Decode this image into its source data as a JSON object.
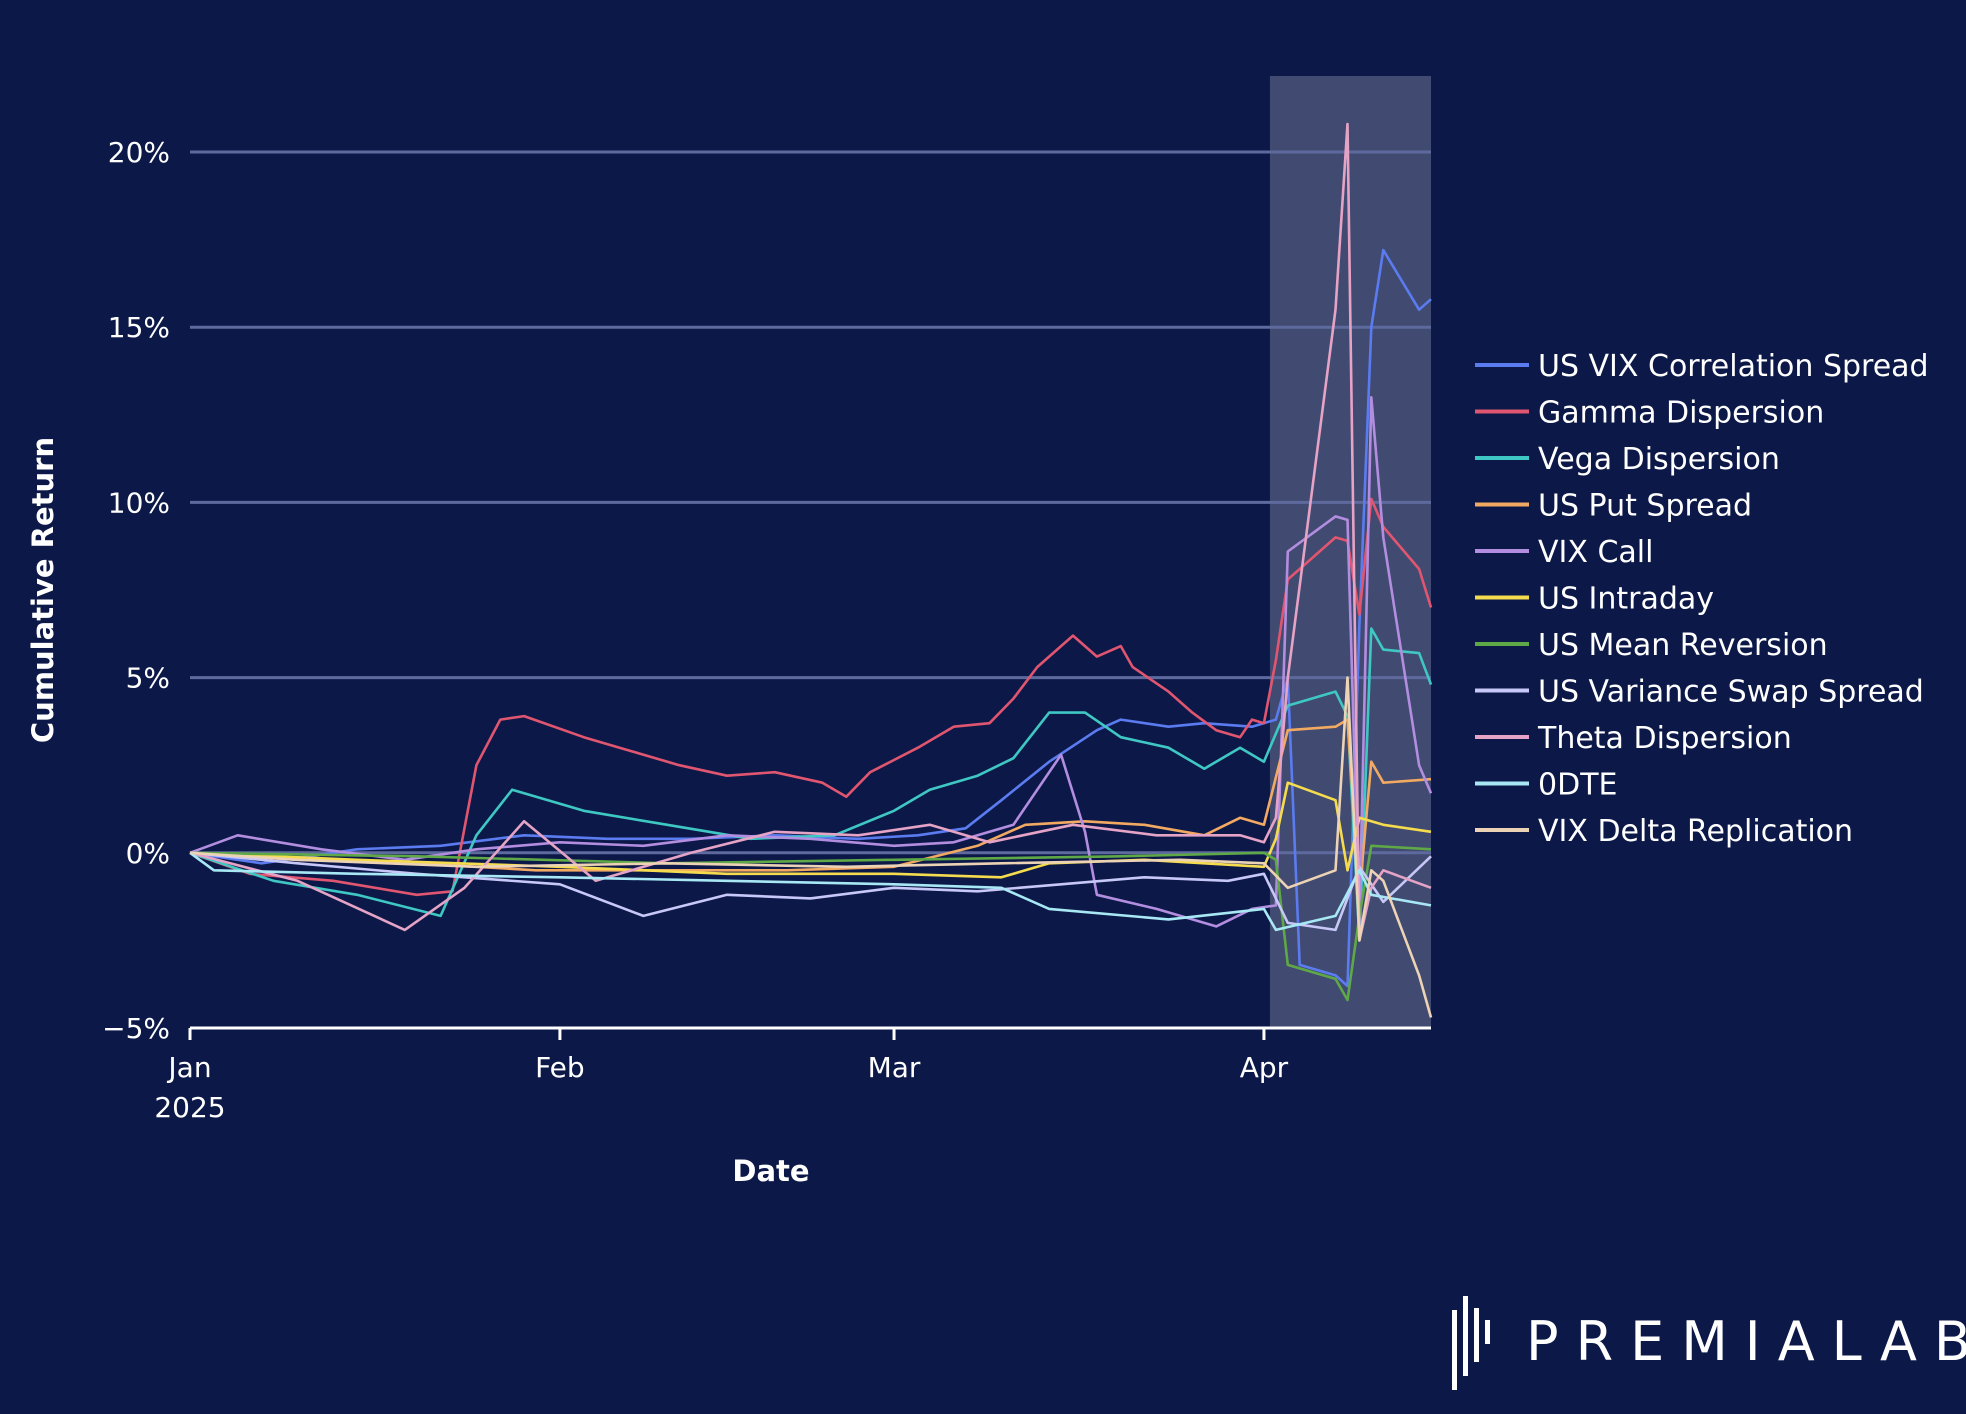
{
  "chart_data": {
    "type": "line",
    "title": "",
    "xlabel": "Date",
    "ylabel": "Cumulative Return",
    "x_ticks": [
      {
        "date": "2025-01-01",
        "label": "Jan",
        "sublabel": "2025"
      },
      {
        "date": "2025-02-01",
        "label": "Feb",
        "sublabel": ""
      },
      {
        "date": "2025-03-01",
        "label": "Mar",
        "sublabel": ""
      },
      {
        "date": "2025-04-01",
        "label": "Apr",
        "sublabel": ""
      }
    ],
    "y_ticks": [
      {
        "value": -5,
        "label": "−5%"
      },
      {
        "value": 0,
        "label": "0%"
      },
      {
        "value": 5,
        "label": "5%"
      },
      {
        "value": 10,
        "label": "10%"
      },
      {
        "value": 15,
        "label": "15%"
      },
      {
        "value": 20,
        "label": "20%"
      }
    ],
    "xlim": [
      "2025-01-01",
      "2025-04-15"
    ],
    "ylim": [
      -5,
      21
    ],
    "y_unit": "%",
    "grid": "horizontal",
    "legend_position": "right",
    "highlight_region": {
      "from": "2025-04-01",
      "to": "2025-04-15"
    },
    "series": [
      {
        "name": "US VIX Correlation Spread",
        "color": "#5b7cf0",
        "points": [
          [
            "2025-01-01",
            0
          ],
          [
            "2025-01-07",
            -0.3
          ],
          [
            "2025-01-15",
            0.1
          ],
          [
            "2025-01-22",
            0.2
          ],
          [
            "2025-01-29",
            0.5
          ],
          [
            "2025-02-05",
            0.4
          ],
          [
            "2025-02-12",
            0.4
          ],
          [
            "2025-02-19",
            0.5
          ],
          [
            "2025-02-26",
            0.4
          ],
          [
            "2025-03-03",
            0.5
          ],
          [
            "2025-03-07",
            0.7
          ],
          [
            "2025-03-10",
            1.5
          ],
          [
            "2025-03-14",
            2.6
          ],
          [
            "2025-03-18",
            3.5
          ],
          [
            "2025-03-20",
            3.8
          ],
          [
            "2025-03-24",
            3.6
          ],
          [
            "2025-03-27",
            3.7
          ],
          [
            "2025-03-31",
            3.6
          ],
          [
            "2025-04-02",
            3.8
          ],
          [
            "2025-04-03",
            5.0
          ],
          [
            "2025-04-04",
            -3.2
          ],
          [
            "2025-04-07",
            -3.5
          ],
          [
            "2025-04-08",
            -3.8
          ],
          [
            "2025-04-09",
            6.5
          ],
          [
            "2025-04-10",
            15.0
          ],
          [
            "2025-04-11",
            17.2
          ],
          [
            "2025-04-14",
            15.5
          ],
          [
            "2025-04-15",
            15.8
          ]
        ]
      },
      {
        "name": "Gamma Dispersion",
        "color": "#e05670",
        "points": [
          [
            "2025-01-01",
            0
          ],
          [
            "2025-01-06",
            -0.6
          ],
          [
            "2025-01-13",
            -0.8
          ],
          [
            "2025-01-20",
            -1.2
          ],
          [
            "2025-01-23",
            -1.1
          ],
          [
            "2025-01-25",
            2.5
          ],
          [
            "2025-01-27",
            3.8
          ],
          [
            "2025-01-29",
            3.9
          ],
          [
            "2025-02-03",
            3.3
          ],
          [
            "2025-02-07",
            2.9
          ],
          [
            "2025-02-11",
            2.5
          ],
          [
            "2025-02-15",
            2.2
          ],
          [
            "2025-02-19",
            2.3
          ],
          [
            "2025-02-23",
            2.0
          ],
          [
            "2025-02-25",
            1.6
          ],
          [
            "2025-02-27",
            2.3
          ],
          [
            "2025-03-03",
            3.0
          ],
          [
            "2025-03-06",
            3.6
          ],
          [
            "2025-03-09",
            3.7
          ],
          [
            "2025-03-11",
            4.4
          ],
          [
            "2025-03-13",
            5.3
          ],
          [
            "2025-03-16",
            6.2
          ],
          [
            "2025-03-18",
            5.6
          ],
          [
            "2025-03-20",
            5.9
          ],
          [
            "2025-03-21",
            5.3
          ],
          [
            "2025-03-24",
            4.6
          ],
          [
            "2025-03-26",
            4.0
          ],
          [
            "2025-03-28",
            3.5
          ],
          [
            "2025-03-30",
            3.3
          ],
          [
            "2025-03-31",
            3.8
          ],
          [
            "2025-04-01",
            3.7
          ],
          [
            "2025-04-02",
            5.5
          ],
          [
            "2025-04-03",
            7.8
          ],
          [
            "2025-04-07",
            9.0
          ],
          [
            "2025-04-08",
            8.9
          ],
          [
            "2025-04-09",
            6.8
          ],
          [
            "2025-04-10",
            10.1
          ],
          [
            "2025-04-11",
            9.3
          ],
          [
            "2025-04-14",
            8.1
          ],
          [
            "2025-04-15",
            7.0
          ]
        ]
      },
      {
        "name": "Vega Dispersion",
        "color": "#3fc8c3",
        "points": [
          [
            "2025-01-01",
            0
          ],
          [
            "2025-01-08",
            -0.8
          ],
          [
            "2025-01-15",
            -1.2
          ],
          [
            "2025-01-22",
            -1.8
          ],
          [
            "2025-01-25",
            0.5
          ],
          [
            "2025-01-28",
            1.8
          ],
          [
            "2025-02-03",
            1.2
          ],
          [
            "2025-02-10",
            0.8
          ],
          [
            "2025-02-17",
            0.4
          ],
          [
            "2025-02-24",
            0.5
          ],
          [
            "2025-03-01",
            1.2
          ],
          [
            "2025-03-04",
            1.8
          ],
          [
            "2025-03-08",
            2.2
          ],
          [
            "2025-03-11",
            2.7
          ],
          [
            "2025-03-14",
            4.0
          ],
          [
            "2025-03-17",
            4.0
          ],
          [
            "2025-03-20",
            3.3
          ],
          [
            "2025-03-24",
            3.0
          ],
          [
            "2025-03-27",
            2.4
          ],
          [
            "2025-03-30",
            3.0
          ],
          [
            "2025-04-01",
            2.6
          ],
          [
            "2025-04-03",
            4.2
          ],
          [
            "2025-04-07",
            4.6
          ],
          [
            "2025-04-08",
            3.9
          ],
          [
            "2025-04-09",
            -2.5
          ],
          [
            "2025-04-10",
            6.4
          ],
          [
            "2025-04-11",
            5.8
          ],
          [
            "2025-04-14",
            5.7
          ],
          [
            "2025-04-15",
            4.8
          ]
        ]
      },
      {
        "name": "US Put Spread",
        "color": "#f2a962",
        "points": [
          [
            "2025-01-01",
            0
          ],
          [
            "2025-01-10",
            -0.2
          ],
          [
            "2025-01-20",
            -0.3
          ],
          [
            "2025-01-30",
            -0.5
          ],
          [
            "2025-02-10",
            -0.5
          ],
          [
            "2025-02-20",
            -0.5
          ],
          [
            "2025-03-01",
            -0.4
          ],
          [
            "2025-03-08",
            0.2
          ],
          [
            "2025-03-12",
            0.8
          ],
          [
            "2025-03-17",
            0.9
          ],
          [
            "2025-03-22",
            0.8
          ],
          [
            "2025-03-27",
            0.5
          ],
          [
            "2025-03-30",
            1.0
          ],
          [
            "2025-04-01",
            0.8
          ],
          [
            "2025-04-03",
            3.5
          ],
          [
            "2025-04-07",
            3.6
          ],
          [
            "2025-04-08",
            3.8
          ],
          [
            "2025-04-09",
            -1.2
          ],
          [
            "2025-04-10",
            2.6
          ],
          [
            "2025-04-11",
            2.0
          ],
          [
            "2025-04-15",
            2.1
          ]
        ]
      },
      {
        "name": "VIX Call",
        "color": "#b38ee0",
        "points": [
          [
            "2025-01-01",
            0
          ],
          [
            "2025-01-05",
            0.5
          ],
          [
            "2025-01-12",
            0.1
          ],
          [
            "2025-01-19",
            -0.2
          ],
          [
            "2025-01-25",
            0.1
          ],
          [
            "2025-02-01",
            0.3
          ],
          [
            "2025-02-08",
            0.2
          ],
          [
            "2025-02-15",
            0.5
          ],
          [
            "2025-02-22",
            0.4
          ],
          [
            "2025-03-01",
            0.2
          ],
          [
            "2025-03-06",
            0.3
          ],
          [
            "2025-03-11",
            0.8
          ],
          [
            "2025-03-15",
            2.8
          ],
          [
            "2025-03-17",
            0.6
          ],
          [
            "2025-03-18",
            -1.2
          ],
          [
            "2025-03-23",
            -1.6
          ],
          [
            "2025-03-28",
            -2.1
          ],
          [
            "2025-03-31",
            -1.6
          ],
          [
            "2025-04-02",
            -1.5
          ],
          [
            "2025-04-03",
            8.6
          ],
          [
            "2025-04-07",
            9.6
          ],
          [
            "2025-04-08",
            9.5
          ],
          [
            "2025-04-09",
            -2.0
          ],
          [
            "2025-04-10",
            13.0
          ],
          [
            "2025-04-11",
            9.0
          ],
          [
            "2025-04-14",
            2.5
          ],
          [
            "2025-04-15",
            1.7
          ]
        ]
      },
      {
        "name": "US Intraday",
        "color": "#f5dc4f",
        "points": [
          [
            "2025-01-01",
            0
          ],
          [
            "2025-01-15",
            -0.2
          ],
          [
            "2025-02-01",
            -0.4
          ],
          [
            "2025-02-15",
            -0.6
          ],
          [
            "2025-03-01",
            -0.6
          ],
          [
            "2025-03-10",
            -0.7
          ],
          [
            "2025-03-14",
            -0.3
          ],
          [
            "2025-03-22",
            -0.2
          ],
          [
            "2025-04-01",
            -0.4
          ],
          [
            "2025-04-02",
            0.4
          ],
          [
            "2025-04-03",
            2.0
          ],
          [
            "2025-04-07",
            1.5
          ],
          [
            "2025-04-08",
            -0.5
          ],
          [
            "2025-04-09",
            1.0
          ],
          [
            "2025-04-11",
            0.8
          ],
          [
            "2025-04-15",
            0.6
          ]
        ]
      },
      {
        "name": "US Mean Reversion",
        "color": "#5fa847",
        "points": [
          [
            "2025-01-01",
            0
          ],
          [
            "2025-01-20",
            -0.1
          ],
          [
            "2025-02-10",
            -0.3
          ],
          [
            "2025-03-01",
            -0.2
          ],
          [
            "2025-03-20",
            -0.1
          ],
          [
            "2025-04-01",
            0
          ],
          [
            "2025-04-02",
            -0.2
          ],
          [
            "2025-04-03",
            -3.2
          ],
          [
            "2025-04-07",
            -3.6
          ],
          [
            "2025-04-08",
            -4.2
          ],
          [
            "2025-04-09",
            -1.8
          ],
          [
            "2025-04-10",
            0.2
          ],
          [
            "2025-04-15",
            0.1
          ]
        ]
      },
      {
        "name": "US Variance Swap Spread",
        "color": "#c8c8f8",
        "points": [
          [
            "2025-01-01",
            0
          ],
          [
            "2025-01-10",
            -0.3
          ],
          [
            "2025-01-20",
            -0.6
          ],
          [
            "2025-02-01",
            -0.9
          ],
          [
            "2025-02-08",
            -1.8
          ],
          [
            "2025-02-15",
            -1.2
          ],
          [
            "2025-02-22",
            -1.3
          ],
          [
            "2025-03-01",
            -1.0
          ],
          [
            "2025-03-08",
            -1.1
          ],
          [
            "2025-03-15",
            -0.9
          ],
          [
            "2025-03-22",
            -0.7
          ],
          [
            "2025-03-29",
            -0.8
          ],
          [
            "2025-04-01",
            -0.6
          ],
          [
            "2025-04-03",
            -2.0
          ],
          [
            "2025-04-07",
            -2.2
          ],
          [
            "2025-04-09",
            -0.4
          ],
          [
            "2025-04-11",
            -1.4
          ],
          [
            "2025-04-15",
            -0.1
          ]
        ]
      },
      {
        "name": "Theta Dispersion",
        "color": "#e5a3c6",
        "points": [
          [
            "2025-01-01",
            0
          ],
          [
            "2025-01-10",
            -0.8
          ],
          [
            "2025-01-19",
            -2.2
          ],
          [
            "2025-01-24",
            -1.0
          ],
          [
            "2025-01-29",
            0.9
          ],
          [
            "2025-02-04",
            -0.8
          ],
          [
            "2025-02-12",
            0
          ],
          [
            "2025-02-19",
            0.6
          ],
          [
            "2025-02-26",
            0.5
          ],
          [
            "2025-03-04",
            0.8
          ],
          [
            "2025-03-09",
            0.3
          ],
          [
            "2025-03-16",
            0.8
          ],
          [
            "2025-03-23",
            0.5
          ],
          [
            "2025-03-30",
            0.5
          ],
          [
            "2025-04-01",
            0.3
          ],
          [
            "2025-04-02",
            1.0
          ],
          [
            "2025-04-03",
            5.0
          ],
          [
            "2025-04-07",
            15.5
          ],
          [
            "2025-04-08",
            20.8
          ],
          [
            "2025-04-09",
            -2.5
          ],
          [
            "2025-04-10",
            -1.0
          ],
          [
            "2025-04-11",
            -0.5
          ],
          [
            "2025-04-15",
            -1.0
          ]
        ]
      },
      {
        "name": "0DTE",
        "color": "#a8e8f5",
        "points": [
          [
            "2025-01-01",
            0
          ],
          [
            "2025-01-03",
            -0.5
          ],
          [
            "2025-01-15",
            -0.6
          ],
          [
            "2025-02-01",
            -0.7
          ],
          [
            "2025-02-15",
            -0.8
          ],
          [
            "2025-03-01",
            -0.9
          ],
          [
            "2025-03-10",
            -1.0
          ],
          [
            "2025-03-14",
            -1.6
          ],
          [
            "2025-03-24",
            -1.9
          ],
          [
            "2025-04-01",
            -1.6
          ],
          [
            "2025-04-02",
            -2.2
          ],
          [
            "2025-04-07",
            -1.8
          ],
          [
            "2025-04-09",
            -0.5
          ],
          [
            "2025-04-10",
            -1.2
          ],
          [
            "2025-04-15",
            -1.5
          ]
        ]
      },
      {
        "name": "VIX Delta Replication",
        "color": "#ecd3b5",
        "points": [
          [
            "2025-01-01",
            0
          ],
          [
            "2025-01-10",
            -0.2
          ],
          [
            "2025-01-25",
            -0.4
          ],
          [
            "2025-02-10",
            -0.3
          ],
          [
            "2025-02-25",
            -0.4
          ],
          [
            "2025-03-10",
            -0.3
          ],
          [
            "2025-03-25",
            -0.2
          ],
          [
            "2025-04-01",
            -0.3
          ],
          [
            "2025-04-03",
            -1.0
          ],
          [
            "2025-04-07",
            -0.5
          ],
          [
            "2025-04-08",
            5.0
          ],
          [
            "2025-04-09",
            -2.5
          ],
          [
            "2025-04-10",
            -0.5
          ],
          [
            "2025-04-11",
            -0.8
          ],
          [
            "2025-04-14",
            -3.5
          ],
          [
            "2025-04-15",
            -4.7
          ]
        ]
      }
    ]
  },
  "brand": {
    "name": "PREMIALAB"
  }
}
